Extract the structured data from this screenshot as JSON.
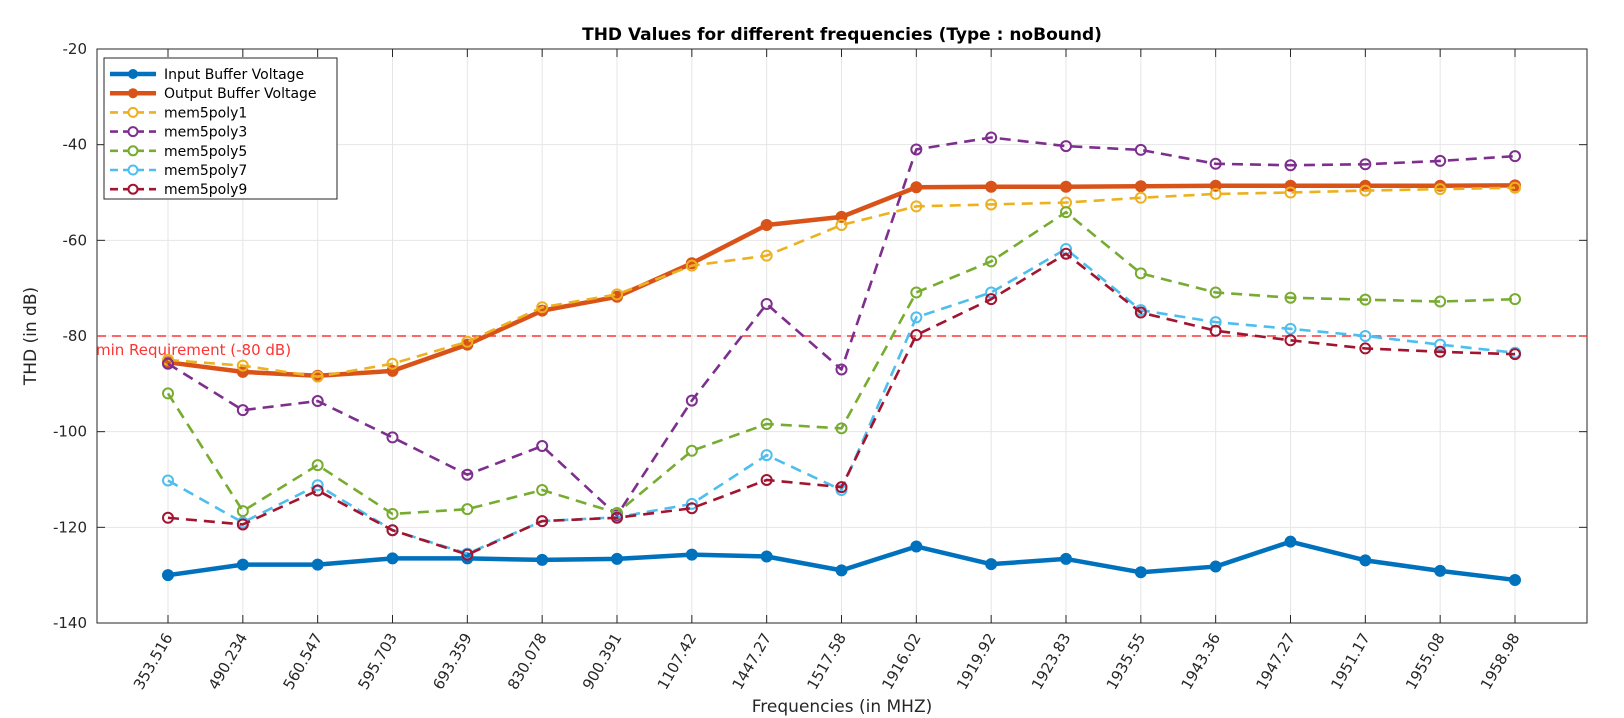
{
  "chart_data": {
    "type": "line",
    "title": "THD Values for different frequencies (Type : noBound)",
    "xlabel": "Frequencies (in MHZ)",
    "ylabel": "THD (in dB)",
    "ylim": [
      -140,
      -20
    ],
    "yticks": [
      -140,
      -120,
      -100,
      -80,
      -60,
      -40,
      -20
    ],
    "grid": true,
    "legend_position": "top-left",
    "categories": [
      "353.516",
      "490.234",
      "560.547",
      "595.703",
      "693.359",
      "830.078",
      "900.391",
      "1107.42",
      "1447.27",
      "1517.58",
      "1916.02",
      "1919.92",
      "1923.83",
      "1935.55",
      "1943.36",
      "1947.27",
      "1951.17",
      "1955.08",
      "1958.98"
    ],
    "reference_line": {
      "y": -80,
      "label": "min Requirement (-80 dB)",
      "color": "#ff3333"
    },
    "series": [
      {
        "name": "Input Buffer Voltage",
        "color": "#0072bd",
        "style": "solid",
        "marker": "filled",
        "values": [
          -130,
          -127.8,
          -127.8,
          -126.5,
          -126.5,
          -126.8,
          -126.6,
          -125.7,
          -126.1,
          -129,
          -124,
          -127.7,
          -126.6,
          -129.4,
          -128.2,
          -123,
          -126.9,
          -129.1,
          -131
        ]
      },
      {
        "name": "Output Buffer Voltage",
        "color": "#d95319",
        "style": "solid",
        "marker": "filled",
        "values": [
          -85.5,
          -87.5,
          -88.3,
          -87.3,
          -81.8,
          -74.7,
          -71.8,
          -64.8,
          -56.8,
          -55.1,
          -48.9,
          -48.8,
          -48.8,
          -48.7,
          -48.6,
          -48.6,
          -48.6,
          -48.6,
          -48.5
        ]
      },
      {
        "name": "mem5poly1",
        "color": "#edb120",
        "style": "dashed",
        "marker": "open",
        "values": [
          -85,
          -86.2,
          -88.5,
          -85.8,
          -81.2,
          -74,
          -71.3,
          -65.3,
          -63.2,
          -56.8,
          -52.9,
          -52.5,
          -52.1,
          -51.1,
          -50.3,
          -50,
          -49.6,
          -49.3,
          -49
        ]
      },
      {
        "name": "mem5poly3",
        "color": "#7e2f8e",
        "style": "dashed",
        "marker": "open",
        "values": [
          -85.8,
          -95.5,
          -93.6,
          -101.2,
          -109,
          -103,
          -117.5,
          -93.5,
          -73.3,
          -87,
          -41,
          -38.5,
          -40.3,
          -41.1,
          -44,
          -44.3,
          -44.1,
          -43.4,
          -42.4
        ]
      },
      {
        "name": "mem5poly5",
        "color": "#77ac30",
        "style": "dashed",
        "marker": "open",
        "values": [
          -92,
          -116.6,
          -107,
          -117.2,
          -116.2,
          -112.2,
          -117,
          -104,
          -98.4,
          -99.3,
          -70.9,
          -64.4,
          -54.1,
          -66.9,
          -70.9,
          -72,
          -72.4,
          -72.8,
          -72.3
        ]
      },
      {
        "name": "mem5poly7",
        "color": "#4dbeee",
        "style": "dashed",
        "marker": "open",
        "values": [
          -110.2,
          -119,
          -111.2,
          -120.6,
          -125.5,
          -118.7,
          -117.9,
          -115.1,
          -104.9,
          -112.2,
          -76.1,
          -70.9,
          -61.8,
          -74.6,
          -77.1,
          -78.5,
          -80,
          -81.8,
          -83.5
        ]
      },
      {
        "name": "mem5poly9",
        "color": "#a2142f",
        "style": "dashed",
        "marker": "open",
        "values": [
          -118,
          -119.4,
          -112.3,
          -120.6,
          -125.7,
          -118.7,
          -118,
          -116,
          -110.1,
          -111.6,
          -79.8,
          -72.3,
          -62.8,
          -75.1,
          -78.9,
          -80.9,
          -82.6,
          -83.3,
          -83.8
        ]
      }
    ]
  }
}
